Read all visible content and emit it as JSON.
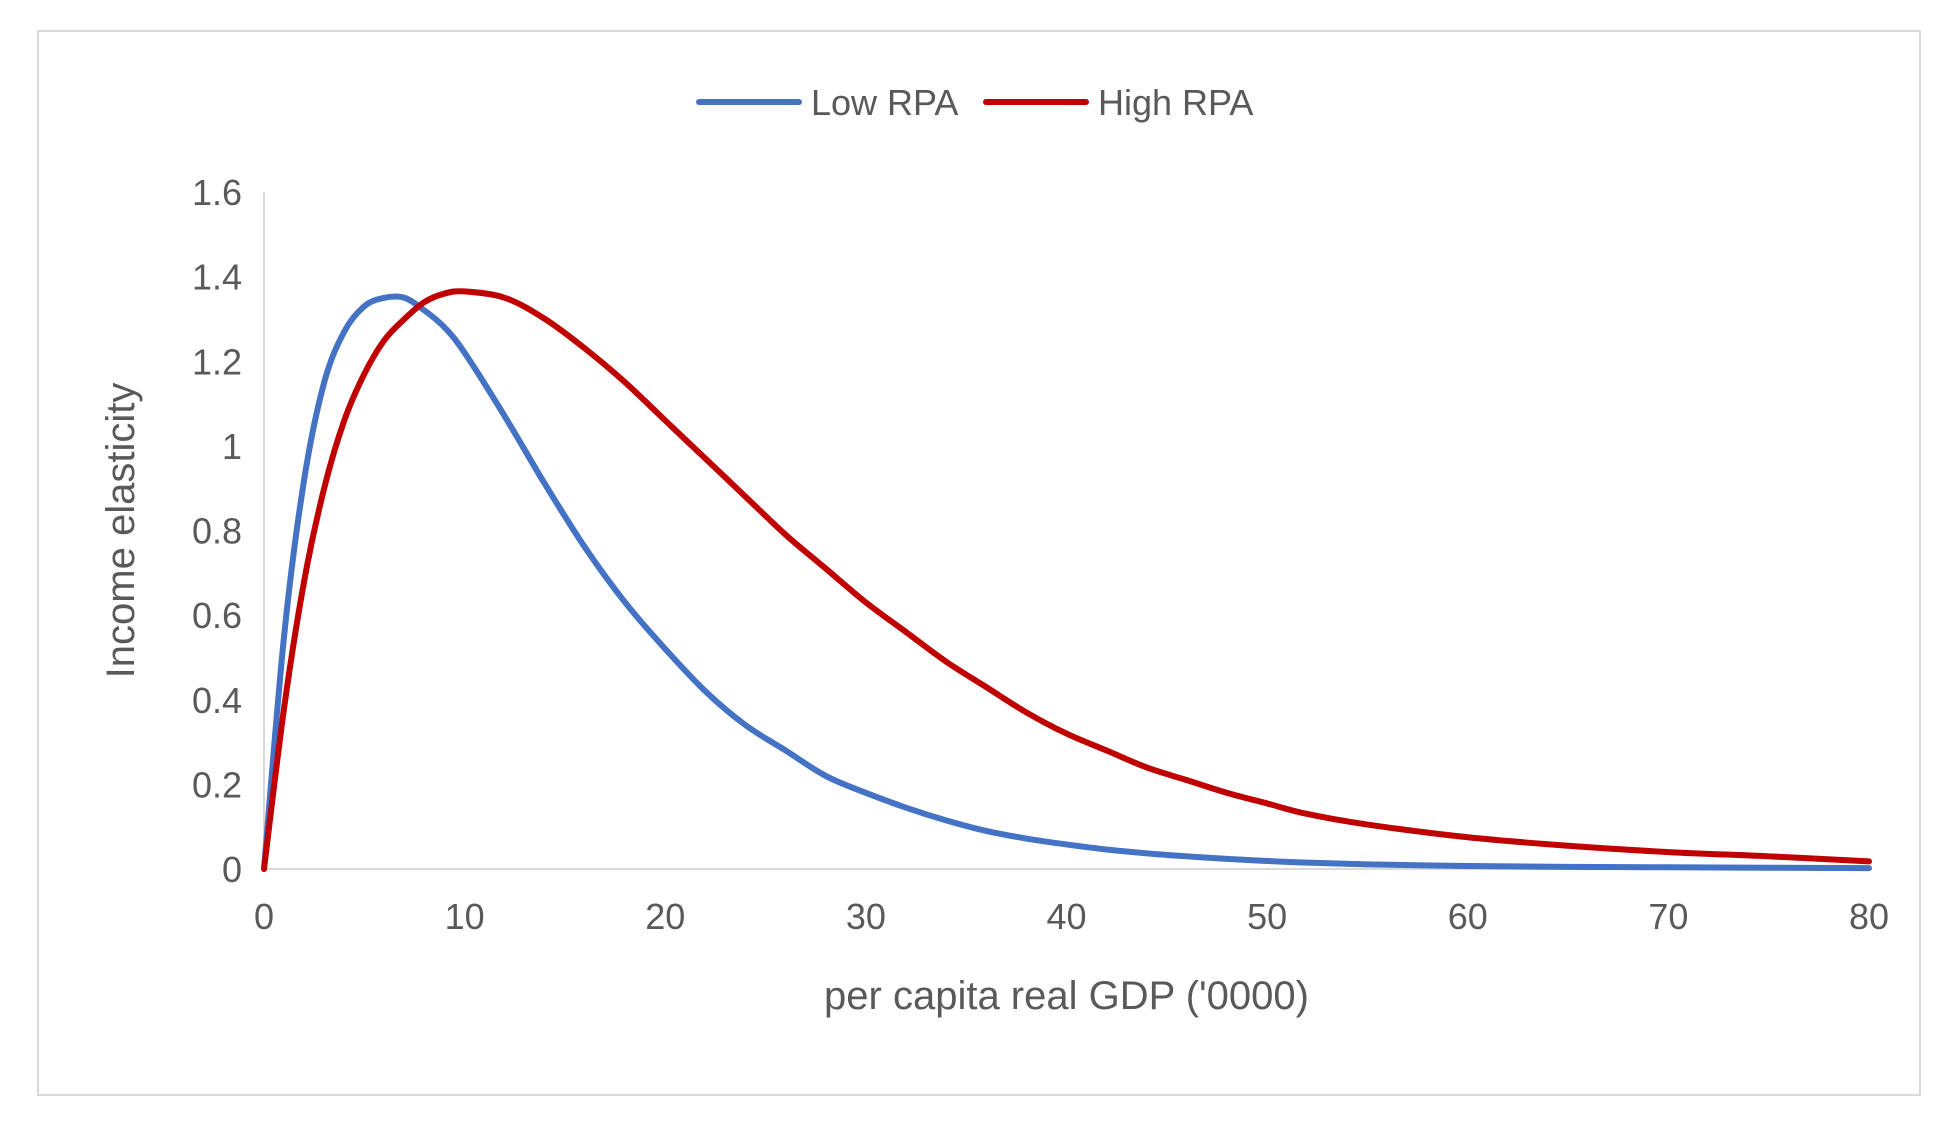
{
  "chart_data": {
    "type": "line",
    "title": "",
    "xlabel": "per capita real GDP ('0000)",
    "ylabel": "Income elasticity",
    "xlim": [
      0,
      80
    ],
    "ylim": [
      0,
      1.6
    ],
    "x_ticks": [
      "0",
      "10",
      "20",
      "30",
      "40",
      "50",
      "60",
      "70",
      "80"
    ],
    "y_ticks": [
      "0",
      "0.2",
      "0.4",
      "0.6",
      "0.8",
      "1",
      "1.2",
      "1.4",
      "1.6"
    ],
    "grid": false,
    "legend_position": "top-center",
    "x": [
      0,
      1,
      2,
      3,
      4,
      5,
      6,
      7,
      8,
      9,
      10,
      12,
      14,
      16,
      18,
      20,
      22,
      24,
      26,
      28,
      30,
      32,
      34,
      36,
      38,
      40,
      42,
      44,
      46,
      48,
      50,
      52,
      55,
      60,
      65,
      70,
      75,
      80
    ],
    "series": [
      {
        "name": "Low RPA",
        "color": "#4472c4",
        "values": [
          0,
          0.55,
          0.92,
          1.15,
          1.27,
          1.33,
          1.35,
          1.35,
          1.32,
          1.28,
          1.22,
          1.07,
          0.91,
          0.76,
          0.63,
          0.52,
          0.42,
          0.34,
          0.28,
          0.22,
          0.18,
          0.145,
          0.115,
          0.09,
          0.072,
          0.058,
          0.046,
          0.037,
          0.03,
          0.024,
          0.019,
          0.015,
          0.011,
          0.007,
          0.005,
          0.004,
          0.003,
          0.002
        ]
      },
      {
        "name": "High RPA",
        "color": "#c00000",
        "values": [
          0,
          0.38,
          0.68,
          0.9,
          1.06,
          1.17,
          1.25,
          1.3,
          1.34,
          1.36,
          1.365,
          1.35,
          1.3,
          1.23,
          1.15,
          1.06,
          0.97,
          0.88,
          0.79,
          0.71,
          0.63,
          0.56,
          0.49,
          0.43,
          0.37,
          0.32,
          0.28,
          0.24,
          0.21,
          0.18,
          0.155,
          0.13,
          0.105,
          0.075,
          0.055,
          0.04,
          0.03,
          0.018
        ]
      }
    ]
  }
}
